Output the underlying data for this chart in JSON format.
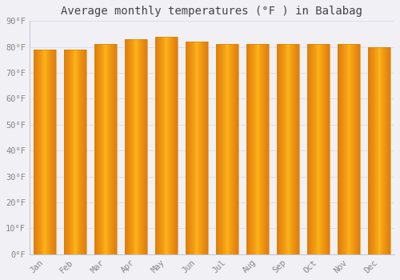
{
  "title": "Average monthly temperatures (°F ) in Balabag",
  "months": [
    "Jan",
    "Feb",
    "Mar",
    "Apr",
    "May",
    "Jun",
    "Jul",
    "Aug",
    "Sep",
    "Oct",
    "Nov",
    "Dec"
  ],
  "values": [
    79,
    79,
    81,
    83,
    84,
    82,
    81,
    81,
    81,
    81,
    81,
    80
  ],
  "bar_color_center": "#FFB800",
  "bar_color_edge": "#E07800",
  "background_color": "#F0F0F5",
  "grid_color": "#DDDDEE",
  "ylim": [
    0,
    90
  ],
  "yticks": [
    0,
    10,
    20,
    30,
    40,
    50,
    60,
    70,
    80,
    90
  ],
  "ytick_labels": [
    "0°F",
    "10°F",
    "20°F",
    "30°F",
    "40°F",
    "50°F",
    "60°F",
    "70°F",
    "80°F",
    "90°F"
  ],
  "title_fontsize": 10,
  "tick_fontsize": 7.5,
  "title_color": "#444444",
  "tick_color": "#888888",
  "font_family": "monospace",
  "bar_width": 0.75,
  "figsize": [
    5.0,
    3.5
  ],
  "dpi": 100
}
